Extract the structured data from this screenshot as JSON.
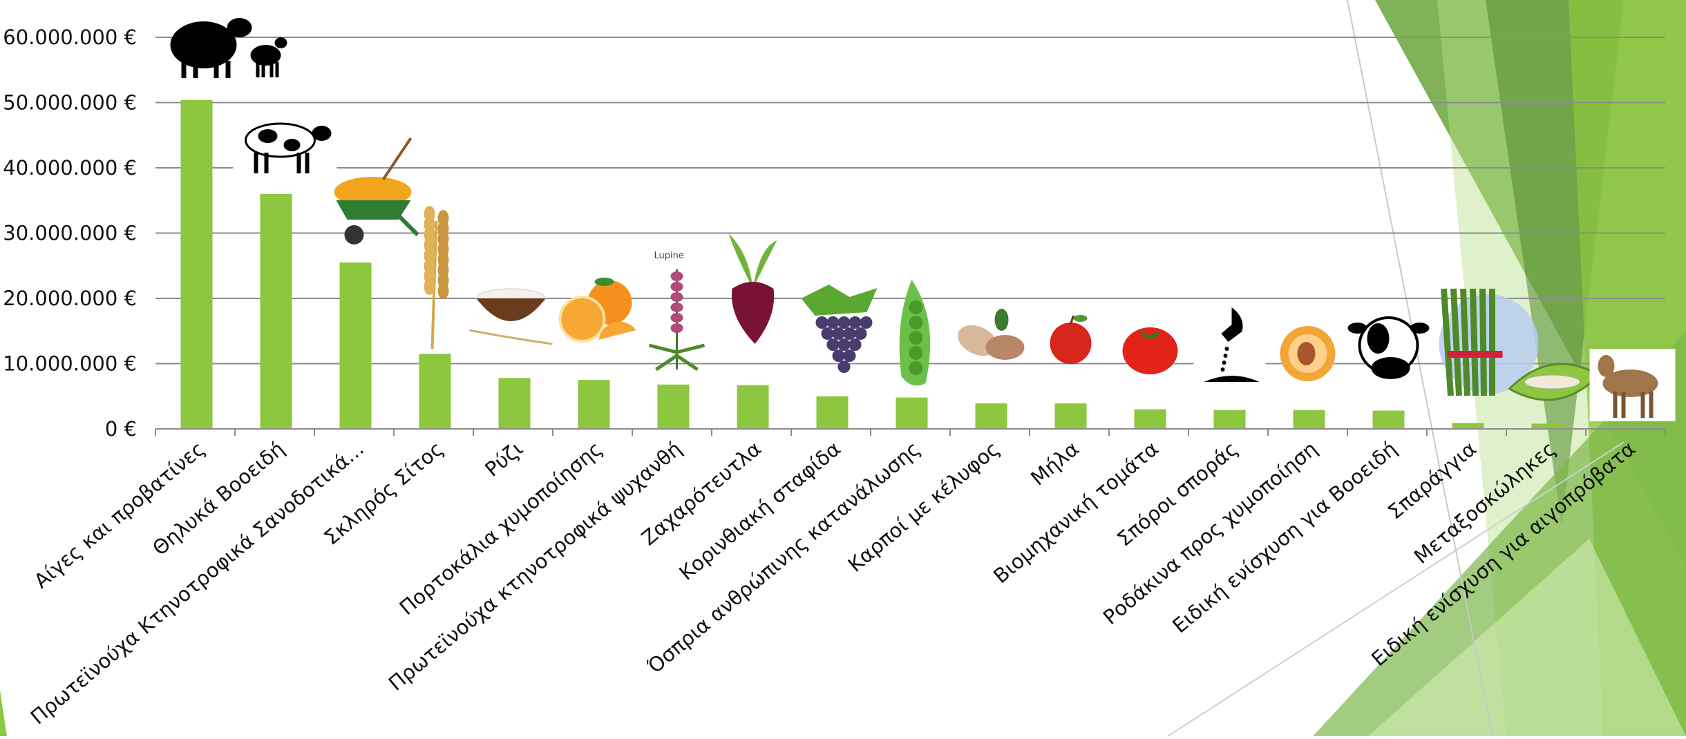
{
  "chart_data": {
    "type": "bar",
    "title": "",
    "xlabel": "",
    "ylabel": "",
    "ylim": [
      0,
      60000000
    ],
    "yticks": [
      0,
      10000000,
      20000000,
      30000000,
      40000000,
      50000000,
      60000000
    ],
    "ytick_labels": [
      "0 €",
      "10.000.000 €",
      "20.000.000 €",
      "30.000.000 €",
      "40.000.000 €",
      "50.000.000 €",
      "60.000.000 €"
    ],
    "grid": true,
    "legend": "none",
    "bar_color": "#8dc63f",
    "categories": [
      "Αίγες και προβατίνες",
      "Θηλυκά Βοοειδή",
      "Πρωτεϊνούχα Κτηνοτροφικά Σανοδοτικά...",
      "Σκληρός Σίτος",
      "Ρύζι",
      "Πορτοκάλια χυμοποίησης",
      "Πρωτεϊνούχα κτηνοτροφικά ψυχανθή",
      "Ζαχαρότευτλα",
      "Κορινθιακή σταφίδα",
      "Όσπρια ανθρώπινης κατανάλωσης",
      "Καρποί με κέλυφος",
      "Μήλα",
      "Βιομηχανική τομάτα",
      "Σπόροι σποράς",
      "Ροδάκινα προς χυμοποίηση",
      "Ειδική ενίσχυση για  Βοοειδή",
      "Σπαράγγια",
      "Μεταξοσκώληκες",
      "Ειδική ενίσχυση για αιγοπρόβατα"
    ],
    "values": [
      50400000,
      36000000,
      25500000,
      11500000,
      7800000,
      7500000,
      6800000,
      6700000,
      5000000,
      4800000,
      3900000,
      3900000,
      3000000,
      2900000,
      2900000,
      2800000,
      900000,
      800000,
      300000
    ]
  },
  "images": {
    "lupine_label": "Lupine"
  },
  "icons": [
    "sheep-and-lamb-icon",
    "cow-icon",
    "hay-wheelbarrow-icon",
    "wheat-icon",
    "rice-bowl-icon",
    "oranges-icon",
    "lupine-plant-icon",
    "sugar-beet-icon",
    "grapes-icon",
    "peas-icon",
    "almonds-icon",
    "apple-icon",
    "tomato-icon",
    "sowing-hand-icon",
    "peach-icon",
    "cow-head-icon",
    "asparagus-icon",
    "silkworm-icon",
    "goat-icon"
  ]
}
